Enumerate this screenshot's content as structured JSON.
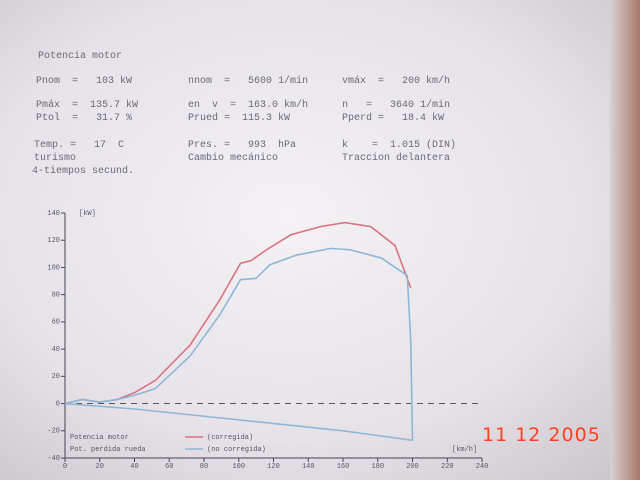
{
  "header": {
    "title": "Potencia motor",
    "rows": [
      [
        "Pnom  =   103 kW",
        "nnom  =   5600 1/min",
        "vmáx  =   200 km/h"
      ],
      [
        "Pmáx  =  135.7 kW",
        "en  v  =  163.0 km/h",
        "n   =   3640 1/min"
      ],
      [
        "Ptol  =   31.7 %",
        "Prued =  115.3 kW",
        "Pperd =   18.4 kW"
      ],
      [
        "Temp. =   17  C",
        "Pres. =   993  hPa",
        "k    =  1.015 (DIN)"
      ],
      [
        "turismo",
        "Cambio mecánico",
        "Traccion delantera"
      ],
      [
        "4-tiempos secund."
      ]
    ]
  },
  "date_stamp": "11 12 2005",
  "chart_data": {
    "type": "line",
    "y_label": "[kW]",
    "x_label": "[km/h]",
    "legend_title": "Potencia motor",
    "xlim": [
      0,
      240
    ],
    "xticks": [
      0,
      20,
      40,
      60,
      80,
      100,
      120,
      140,
      160,
      180,
      200,
      220,
      240
    ],
    "ylim": [
      -40,
      140
    ],
    "yticks": [
      -40,
      -20,
      0,
      20,
      40,
      60,
      80,
      100,
      120,
      140
    ],
    "series": [
      {
        "name": "(corregida)",
        "color": "#d9727f",
        "x": [
          0,
          10,
          20,
          30,
          40,
          52,
          72,
          89,
          101,
          107,
          116,
          130,
          147,
          161,
          176,
          190,
          199
        ],
        "values": [
          0,
          3,
          1,
          3,
          8,
          17,
          43,
          76,
          103,
          105,
          113,
          124,
          130,
          133,
          130,
          116,
          85
        ]
      },
      {
        "name": "(no corregida)",
        "color": "#8fb6d6",
        "x": [
          0,
          10,
          20,
          30,
          40,
          52,
          72,
          89,
          101,
          110,
          118,
          133,
          153,
          164,
          182,
          197,
          199,
          200
        ],
        "values": [
          0,
          3,
          1,
          3,
          6,
          11,
          35,
          65,
          91,
          92,
          102,
          109,
          114,
          113,
          107,
          94,
          46,
          -27
        ]
      },
      {
        "name": "Pot. perdida rueda",
        "color": "#8fb6d6",
        "x": [
          0,
          40,
          100,
          160,
          200
        ],
        "values": [
          0,
          -4,
          -12,
          -20,
          -27
        ]
      }
    ]
  }
}
